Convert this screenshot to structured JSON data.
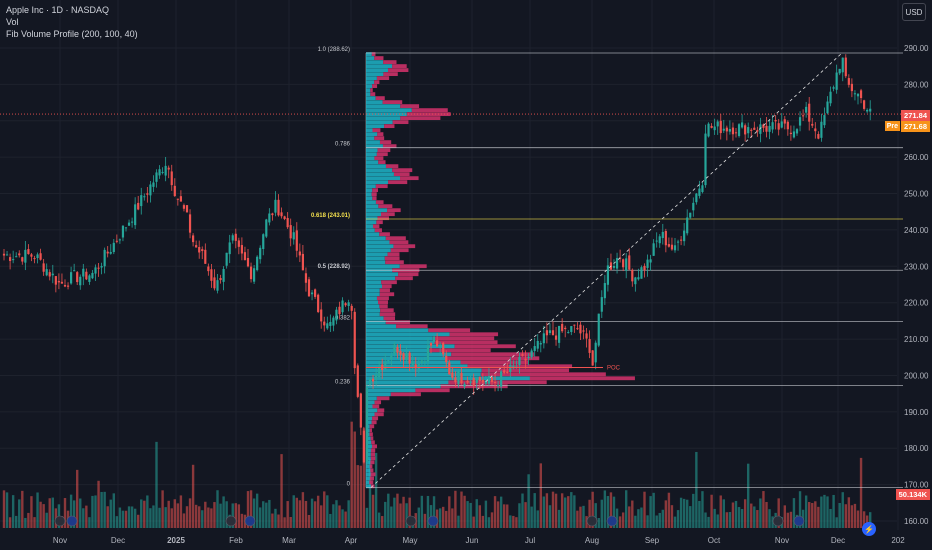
{
  "legend": {
    "symbol": "Apple Inc · 1D · NASDAQ",
    "vol": "Vol",
    "indicator": "Fib Volume Profile (200, 100, 40)"
  },
  "currency": "USD",
  "badges": {
    "last_price": "271.84",
    "pre_label": "Pre",
    "pre_price": "271.68",
    "volume": "50.134K"
  },
  "colors": {
    "background": "#131722",
    "up": "#26a69a",
    "down": "#ef5350",
    "profile_cyan": "#1fb5c9",
    "profile_magenta": "#d6336c",
    "fib_0618": "#f4e04d"
  },
  "chart_data": {
    "type": "candlestick",
    "title": "Apple Inc · 1D · NASDAQ",
    "x_ticks": [
      "Nov",
      "Dec",
      "2025",
      "Feb",
      "Mar",
      "Apr",
      "May",
      "Jun",
      "Jul",
      "Aug",
      "Sep",
      "Oct",
      "Nov",
      "Dec",
      "202"
    ],
    "y_ticks": [
      "290.00",
      "280.00",
      "270.00",
      "260.00",
      "250.00",
      "240.00",
      "230.00",
      "220.00",
      "210.00",
      "200.00",
      "190.00",
      "180.00",
      "170.00",
      "160.00"
    ],
    "ylim": [
      156,
      293
    ],
    "price_trend": [
      [
        "Oct 18",
        233
      ],
      [
        "Oct 31",
        225
      ],
      [
        "Nov 08",
        227
      ],
      [
        "Nov 18",
        228
      ],
      [
        "Nov 26",
        234
      ],
      [
        "Dec 06",
        242
      ],
      [
        "Dec 13",
        248
      ],
      [
        "Dec 20",
        254
      ],
      [
        "Dec 26",
        259
      ],
      [
        "Dec 31",
        250
      ],
      [
        "Jan 06",
        244
      ],
      [
        "Jan 10",
        236
      ],
      [
        "Jan 14",
        233
      ],
      [
        "Jan 21",
        224
      ],
      [
        "Jan 29",
        237
      ],
      [
        "Feb 05",
        232
      ],
      [
        "Feb 10",
        228
      ],
      [
        "Feb 18",
        242
      ],
      [
        "Feb 24",
        247
      ],
      [
        "Mar 03",
        238
      ],
      [
        "Mar 10",
        224
      ],
      [
        "Mar 20",
        213
      ],
      [
        "Mar 31",
        223
      ],
      [
        "Apr 03",
        203
      ],
      [
        "Apr 08",
        172
      ],
      [
        "Apr 09",
        198
      ],
      [
        "Apr 15",
        202
      ],
      [
        "Apr 24",
        208
      ],
      [
        "May 05",
        203
      ],
      [
        "May 13",
        210
      ],
      [
        "May 21",
        200
      ],
      [
        "Jun 02",
        199
      ],
      [
        "Jun 12",
        198
      ],
      [
        "Jun 20",
        201
      ],
      [
        "Jun 30",
        205
      ],
      [
        "Jul 10",
        211
      ],
      [
        "Jul 24",
        213
      ],
      [
        "Jul 31",
        207
      ],
      [
        "Aug 01",
        202
      ],
      [
        "Aug 08",
        229
      ],
      [
        "Aug 15",
        233
      ],
      [
        "Aug 22",
        227
      ],
      [
        "Aug 29",
        231
      ],
      [
        "Sep 05",
        239
      ],
      [
        "Sep 12",
        234
      ],
      [
        "Sep 19",
        245
      ],
      [
        "Sep 26",
        255
      ],
      [
        "Oct 03",
        258
      ],
      [
        "Oct 10",
        245
      ],
      [
        "Oct 17",
        251
      ],
      [
        "Oct 24",
        262
      ],
      [
        "Oct 31",
        270
      ],
      [
        "Nov 07",
        268
      ],
      [
        "Nov 14",
        272
      ],
      [
        "Nov 21",
        266
      ],
      [
        "Nov 28",
        279
      ],
      [
        "Dec 02",
        286
      ],
      [
        "Dec 03",
        288
      ],
      [
        "Dec 05",
        280
      ],
      [
        "Dec 10",
        278
      ],
      [
        "Dec 15",
        274
      ],
      [
        "Dec 17",
        272
      ]
    ],
    "fib_levels": [
      {
        "ratio": "1.0",
        "label": "1.0 (288.62)",
        "price": 288.62
      },
      {
        "ratio": "0.786",
        "label": "0.786",
        "price": 262.6
      },
      {
        "ratio": "0.618",
        "label": "0.618 (243.01)",
        "price": 243.01
      },
      {
        "ratio": "0.5",
        "label": "0.5 (228.92)",
        "price": 228.92
      },
      {
        "ratio": "0.382",
        "label": "0.382",
        "price": 214.8
      },
      {
        "ratio": "0.236",
        "label": "0.236",
        "price": 197.2
      },
      {
        "ratio": "0",
        "label": "0",
        "price": 169.2
      }
    ],
    "poc": {
      "label": "POC",
      "price": 202.2
    },
    "last_price_line": 271.84,
    "volume_profile_note": "Volume-at-price histogram anchored at early April, split into buy (cyan) and sell (magenta) volume; largest node near the POC around 200–203."
  }
}
